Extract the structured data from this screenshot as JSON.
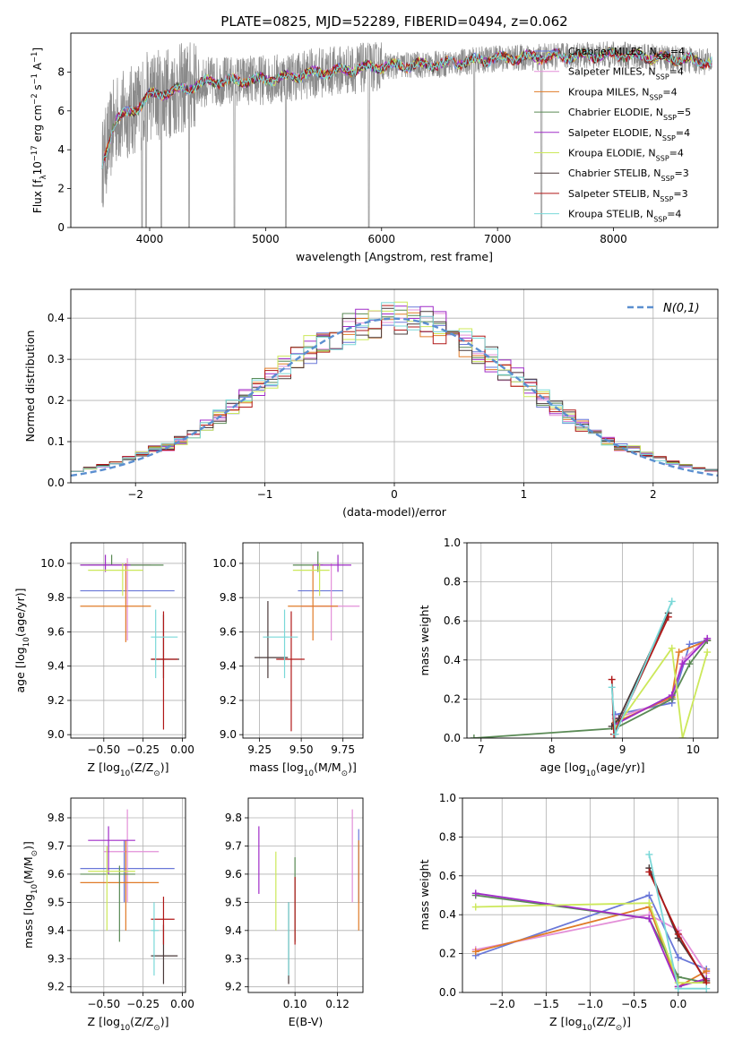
{
  "figure_title": "PLATE=0825, MJD=52289, FIBERID=0494, z=0.062",
  "models": [
    {
      "key": "cm",
      "base": "Chabrier MILES, N",
      "sub": "SSP",
      "suffix": "=4",
      "color": "#6a78d8"
    },
    {
      "key": "sm",
      "base": "Salpeter MILES, N",
      "sub": "SSP",
      "suffix": "=4",
      "color": "#e38fd8"
    },
    {
      "key": "km",
      "base": "Kroupa MILES, N",
      "sub": "SSP",
      "suffix": "=4",
      "color": "#e07b28"
    },
    {
      "key": "ce",
      "base": "Chabrier ELODIE, N",
      "sub": "SSP",
      "suffix": "=5",
      "color": "#5a8a55"
    },
    {
      "key": "se",
      "base": "Salpeter ELODIE, N",
      "sub": "SSP",
      "suffix": "=4",
      "color": "#a02dc8"
    },
    {
      "key": "ke",
      "base": "Kroupa ELODIE, N",
      "sub": "SSP",
      "suffix": "=4",
      "color": "#cce85a"
    },
    {
      "key": "cs",
      "base": "Chabrier STELIB, N",
      "sub": "SSP",
      "suffix": "=3",
      "color": "#4a3a3a"
    },
    {
      "key": "ss",
      "base": "Salpeter STELIB, N",
      "sub": "SSP",
      "suffix": "=3",
      "color": "#b01818"
    },
    {
      "key": "ks",
      "base": "Kroupa STELIB, N",
      "sub": "SSP",
      "suffix": "=4",
      "color": "#7ad8d8"
    }
  ],
  "chart_data": [
    {
      "id": "spectrum",
      "type": "line",
      "xlabel": "wavelength [Angstrom, rest frame]",
      "ylabel": {
        "base": "Flux [f",
        "sub": "λ",
        "mid": "10",
        "sup1": "−17",
        "rest": " erg cm",
        "sup2": "−2",
        "rest2": " s",
        "sup3": "−1",
        "rest3": " A",
        "sup4": "−1",
        "end": "]"
      },
      "xlim": [
        3320,
        8900
      ],
      "ylim": [
        0,
        10
      ],
      "xticks": [
        "4000",
        "5000",
        "6000",
        "7000",
        "8000"
      ],
      "xtick_values": [
        4000,
        5000,
        6000,
        7000,
        8000
      ],
      "yticks": [
        "0",
        "2",
        "4",
        "6",
        "8"
      ],
      "ytick_values": [
        0,
        2,
        4,
        6,
        8
      ],
      "wavelength_range": [
        3590,
        8850
      ],
      "continuum": [
        [
          3590,
          3.2
        ],
        [
          3700,
          5.5
        ],
        [
          3900,
          6.2
        ],
        [
          4000,
          6.8
        ],
        [
          4200,
          7.0
        ],
        [
          4500,
          7.5
        ],
        [
          5000,
          7.6
        ],
        [
          5500,
          8.0
        ],
        [
          6000,
          8.3
        ],
        [
          6500,
          8.4
        ],
        [
          7000,
          8.7
        ],
        [
          7500,
          8.8
        ],
        [
          8000,
          8.9
        ],
        [
          8500,
          8.7
        ],
        [
          8850,
          8.5
        ]
      ],
      "absorption_lines": [
        3934,
        3969,
        4102,
        4340,
        4730,
        5175,
        5890,
        6800,
        7380
      ],
      "grid": false,
      "legend": "top-right"
    },
    {
      "id": "residuals",
      "type": "histogram",
      "xlabel": "(data-model)/error",
      "ylabel": "Normed distribution",
      "xlim": [
        -2.5,
        2.5
      ],
      "ylim": [
        0,
        0.47
      ],
      "xticks": [
        "−2",
        "−1",
        "0",
        "1",
        "2"
      ],
      "xtick_values": [
        -2,
        -1,
        0,
        1,
        2
      ],
      "yticks": [
        "0.0",
        "0.1",
        "0.2",
        "0.3",
        "0.4"
      ],
      "ytick_values": [
        0,
        0.1,
        0.2,
        0.3,
        0.4
      ],
      "bin_width": 0.1,
      "reference_curve": {
        "label": "N(0,1)",
        "mu": 0,
        "sigma": 1,
        "color": "#5b8fd0",
        "style": "dashed"
      },
      "grid": true,
      "legend": "top-right"
    },
    {
      "id": "age_vs_Z",
      "type": "errorbar",
      "xlabel": {
        "base": "Z [log",
        "sub": "10",
        "rest": "(Z/Z",
        "sub2": "⊙",
        "end": ")]"
      },
      "ylabel": {
        "base": "age  [log",
        "sub": "10",
        "rest": "(age/yr)]"
      },
      "xlim": [
        -0.71,
        0.02
      ],
      "ylim": [
        8.98,
        10.12
      ],
      "xticks": [
        "−0.50",
        "−0.25",
        "0.00"
      ],
      "xtick_values": [
        -0.5,
        -0.25,
        0
      ],
      "yticks": [
        "9.0",
        "9.2",
        "9.4",
        "9.6",
        "9.8",
        "10.0"
      ],
      "ytick_values": [
        9.0,
        9.2,
        9.4,
        9.6,
        9.8,
        10.0
      ],
      "points": [
        {
          "m": "cm",
          "x": -0.37,
          "xlo": -0.65,
          "xhi": -0.05,
          "y": 9.84,
          "ylo": 9.84,
          "yhi": 9.84
        },
        {
          "m": "sm",
          "x": -0.35,
          "xlo": -0.6,
          "xhi": -0.2,
          "y": 9.99,
          "ylo": 9.55,
          "yhi": 10.03
        },
        {
          "m": "km",
          "x": -0.36,
          "xlo": -0.65,
          "xhi": -0.2,
          "y": 9.75,
          "ylo": 9.54,
          "yhi": 10.0
        },
        {
          "m": "ce",
          "x": -0.45,
          "xlo": -0.65,
          "xhi": -0.12,
          "y": 9.99,
          "ylo": 9.99,
          "yhi": 10.05
        },
        {
          "m": "se",
          "x": -0.49,
          "xlo": -0.65,
          "xhi": -0.33,
          "y": 9.99,
          "ylo": 9.95,
          "yhi": 10.05
        },
        {
          "m": "ke",
          "x": -0.38,
          "xlo": -0.6,
          "xhi": -0.25,
          "y": 9.96,
          "ylo": 9.81,
          "yhi": 10.0
        },
        {
          "m": "cs",
          "x": -0.12,
          "xlo": -0.2,
          "xhi": -0.02,
          "y": 9.44,
          "ylo": 9.33,
          "yhi": 9.7
        },
        {
          "m": "ss",
          "x": -0.12,
          "xlo": -0.2,
          "xhi": -0.03,
          "y": 9.44,
          "ylo": 9.03,
          "yhi": 9.72
        },
        {
          "m": "ks",
          "x": -0.17,
          "xlo": -0.2,
          "xhi": -0.03,
          "y": 9.57,
          "ylo": 9.33,
          "yhi": 9.73
        }
      ],
      "grid": true
    },
    {
      "id": "age_vs_mass",
      "type": "errorbar",
      "xlabel": {
        "base": "mass [log",
        "sub": "10",
        "rest": "(M/M",
        "sub2": "⊙",
        "end": ")]"
      },
      "xlim": [
        9.15,
        9.87
      ],
      "ylim": [
        8.98,
        10.12
      ],
      "xticks": [
        "9.25",
        "9.50",
        "9.75"
      ],
      "xtick_values": [
        9.25,
        9.5,
        9.75
      ],
      "yticks": [
        "9.0",
        "9.2",
        "9.4",
        "9.6",
        "9.8",
        "10.0"
      ],
      "ytick_values": [
        9.0,
        9.2,
        9.4,
        9.6,
        9.8,
        10.0
      ],
      "points": [
        {
          "m": "cm",
          "x": 9.62,
          "xlo": 9.48,
          "xhi": 9.75,
          "y": 9.84,
          "ylo": 9.84,
          "yhi": 9.84
        },
        {
          "m": "sm",
          "x": 9.68,
          "xlo": 9.5,
          "xhi": 9.85,
          "y": 9.75,
          "ylo": 9.55,
          "yhi": 10.0
        },
        {
          "m": "km",
          "x": 9.57,
          "xlo": 9.42,
          "xhi": 9.72,
          "y": 9.75,
          "ylo": 9.55,
          "yhi": 9.99
        },
        {
          "m": "ce",
          "x": 9.6,
          "xlo": 9.45,
          "xhi": 9.63,
          "y": 9.99,
          "ylo": 9.95,
          "yhi": 10.07
        },
        {
          "m": "se",
          "x": 9.72,
          "xlo": 9.57,
          "xhi": 9.8,
          "y": 9.99,
          "ylo": 9.95,
          "yhi": 10.05
        },
        {
          "m": "ke",
          "x": 9.61,
          "xlo": 9.45,
          "xhi": 9.67,
          "y": 9.96,
          "ylo": 9.81,
          "yhi": 10.0
        },
        {
          "m": "cs",
          "x": 9.3,
          "xlo": 9.22,
          "xhi": 9.42,
          "y": 9.45,
          "ylo": 9.33,
          "yhi": 9.78
        },
        {
          "m": "ss",
          "x": 9.44,
          "xlo": 9.35,
          "xhi": 9.52,
          "y": 9.44,
          "ylo": 9.02,
          "yhi": 9.72
        },
        {
          "m": "ks",
          "x": 9.4,
          "xlo": 9.27,
          "xhi": 9.48,
          "y": 9.57,
          "ylo": 9.33,
          "yhi": 9.73
        }
      ],
      "grid": true
    },
    {
      "id": "weight_vs_age",
      "type": "line",
      "xlabel": {
        "base": "age  [log",
        "sub": "10",
        "rest": "(age/yr)]"
      },
      "ylabel": "mass weight",
      "xlim": [
        6.8,
        10.35
      ],
      "ylim": [
        0,
        1
      ],
      "xticks": [
        "7",
        "8",
        "9",
        "10"
      ],
      "xtick_values": [
        7,
        8,
        9,
        10
      ],
      "yticks": [
        "0.0",
        "0.2",
        "0.4",
        "0.6",
        "0.8",
        "1.0"
      ],
      "ytick_values": [
        0,
        0.2,
        0.4,
        0.6,
        0.8,
        1.0
      ],
      "series": [
        {
          "m": "cm",
          "x": [
            8.9,
            9.7,
            9.95,
            10.2
          ],
          "y": [
            0.12,
            0.18,
            0.48,
            0.5
          ]
        },
        {
          "m": "sm",
          "x": [
            8.9,
            9.7,
            9.85,
            10.2
          ],
          "y": [
            0.1,
            0.2,
            0.4,
            0.51
          ]
        },
        {
          "m": "km",
          "x": [
            8.9,
            9.7,
            9.8,
            10.2
          ],
          "y": [
            0.08,
            0.21,
            0.44,
            0.5
          ]
        },
        {
          "m": "ce",
          "x": [
            6.9,
            8.9,
            9.7,
            9.95,
            10.2
          ],
          "y": [
            0.0,
            0.05,
            0.2,
            0.38,
            0.5
          ]
        },
        {
          "m": "se",
          "x": [
            8.9,
            9.7,
            9.85,
            10.2
          ],
          "y": [
            0.07,
            0.22,
            0.38,
            0.51
          ]
        },
        {
          "m": "ke",
          "x": [
            8.9,
            9.7,
            9.85,
            10.2
          ],
          "y": [
            0.05,
            0.46,
            0.0,
            0.44
          ]
        },
        {
          "m": "cs",
          "x": [
            8.85,
            8.95,
            9.65
          ],
          "y": [
            0.06,
            0.1,
            0.64
          ]
        },
        {
          "m": "ss",
          "x": [
            8.85,
            8.88,
            9.65
          ],
          "y": [
            0.3,
            0.02,
            0.62
          ]
        },
        {
          "m": "ks",
          "x": [
            8.85,
            8.9,
            9.7
          ],
          "y": [
            0.26,
            0.02,
            0.7
          ]
        }
      ],
      "grid": true
    },
    {
      "id": "mass_vs_Z",
      "type": "errorbar",
      "xlabel": {
        "base": "Z [log",
        "sub": "10",
        "rest": "(Z/Z",
        "sub2": "⊙",
        "end": ")]"
      },
      "ylabel": {
        "base": "mass [log",
        "sub": "10",
        "rest": "(M/M",
        "sub2": "⊙",
        "end": ")]"
      },
      "xlim": [
        -0.71,
        0.02
      ],
      "ylim": [
        9.18,
        9.87
      ],
      "xticks": [
        "−0.50",
        "−0.25",
        "0.00"
      ],
      "xtick_values": [
        -0.5,
        -0.25,
        0
      ],
      "yticks": [
        "9.2",
        "9.3",
        "9.4",
        "9.5",
        "9.6",
        "9.7",
        "9.8"
      ],
      "ytick_values": [
        9.2,
        9.3,
        9.4,
        9.5,
        9.6,
        9.7,
        9.8
      ],
      "points": [
        {
          "m": "cm",
          "x": -0.37,
          "xlo": -0.65,
          "xhi": -0.05,
          "y": 9.62,
          "ylo": 9.5,
          "yhi": 9.72
        },
        {
          "m": "sm",
          "x": -0.35,
          "xlo": -0.5,
          "xhi": -0.15,
          "y": 9.68,
          "ylo": 9.5,
          "yhi": 9.83
        },
        {
          "m": "km",
          "x": -0.36,
          "xlo": -0.65,
          "xhi": -0.15,
          "y": 9.57,
          "ylo": 9.4,
          "yhi": 9.72
        },
        {
          "m": "ce",
          "x": -0.4,
          "xlo": -0.65,
          "xhi": -0.3,
          "y": 9.6,
          "ylo": 9.36,
          "yhi": 9.63
        },
        {
          "m": "se",
          "x": -0.47,
          "xlo": -0.6,
          "xhi": -0.3,
          "y": 9.72,
          "ylo": 9.6,
          "yhi": 9.77
        },
        {
          "m": "ke",
          "x": -0.48,
          "xlo": -0.6,
          "xhi": -0.3,
          "y": 9.61,
          "ylo": 9.4,
          "yhi": 9.7
        },
        {
          "m": "cs",
          "x": -0.12,
          "xlo": -0.2,
          "xhi": -0.03,
          "y": 9.31,
          "ylo": 9.21,
          "yhi": 9.42
        },
        {
          "m": "ss",
          "x": -0.12,
          "xlo": -0.2,
          "xhi": -0.05,
          "y": 9.44,
          "ylo": 9.35,
          "yhi": 9.52
        },
        {
          "m": "ks",
          "x": -0.18,
          "xlo": -0.2,
          "xhi": -0.15,
          "y": 9.4,
          "ylo": 9.24,
          "yhi": 9.5
        }
      ],
      "grid": true
    },
    {
      "id": "mass_vs_ebv",
      "type": "errorbar",
      "xlabel": "E(B-V)",
      "xlim": [
        0.078,
        0.132
      ],
      "ylim": [
        9.18,
        9.87
      ],
      "xticks": [
        "0.10",
        "0.12"
      ],
      "xtick_values": [
        0.1,
        0.12
      ],
      "yticks": [
        "9.2",
        "9.3",
        "9.4",
        "9.5",
        "9.6",
        "9.7",
        "9.8"
      ],
      "ytick_values": [
        9.2,
        9.3,
        9.4,
        9.5,
        9.6,
        9.7,
        9.8
      ],
      "points": [
        {
          "m": "cm",
          "x": 0.13,
          "ylo": 9.5,
          "yhi": 9.76
        },
        {
          "m": "sm",
          "x": 0.127,
          "ylo": 9.5,
          "yhi": 9.83
        },
        {
          "m": "km",
          "x": 0.13,
          "ylo": 9.4,
          "yhi": 9.72
        },
        {
          "m": "ce",
          "x": 0.1,
          "ylo": 9.36,
          "yhi": 9.66
        },
        {
          "m": "se",
          "x": 0.083,
          "ylo": 9.53,
          "yhi": 9.77
        },
        {
          "m": "ke",
          "x": 0.091,
          "ylo": 9.4,
          "yhi": 9.68
        },
        {
          "m": "cs",
          "x": 0.097,
          "ylo": 9.21,
          "yhi": 9.5
        },
        {
          "m": "ss",
          "x": 0.1,
          "ylo": 9.35,
          "yhi": 9.59
        },
        {
          "m": "ks",
          "x": 0.097,
          "ylo": 9.24,
          "yhi": 9.5
        }
      ],
      "grid": true
    },
    {
      "id": "weight_vs_Z",
      "type": "line",
      "xlabel": {
        "base": "Z [log",
        "sub": "10",
        "rest": "(Z/Z",
        "sub2": "⊙",
        "end": ")]"
      },
      "ylabel": "mass weight",
      "xlim": [
        -2.45,
        0.45
      ],
      "ylim": [
        0,
        1
      ],
      "xticks": [
        "−2.0",
        "−1.5",
        "−1.0",
        "−0.5",
        "0.0"
      ],
      "xtick_values": [
        -2.0,
        -1.5,
        -1.0,
        -0.5,
        0.0
      ],
      "yticks": [
        "0.0",
        "0.2",
        "0.4",
        "0.6",
        "0.8",
        "1.0"
      ],
      "ytick_values": [
        0,
        0.2,
        0.4,
        0.6,
        0.8,
        1.0
      ],
      "series": [
        {
          "m": "cm",
          "x": [
            -2.3,
            -0.33,
            0.0,
            0.32
          ],
          "y": [
            0.19,
            0.5,
            0.18,
            0.12
          ]
        },
        {
          "m": "sm",
          "x": [
            -2.3,
            -0.33,
            0.0,
            0.32
          ],
          "y": [
            0.22,
            0.4,
            0.32,
            0.1
          ]
        },
        {
          "m": "km",
          "x": [
            -2.3,
            -0.33,
            0.0,
            0.32
          ],
          "y": [
            0.21,
            0.44,
            0.03,
            0.11
          ]
        },
        {
          "m": "ce",
          "x": [
            -2.3,
            -0.33,
            0.0,
            0.32
          ],
          "y": [
            0.5,
            0.38,
            0.08,
            0.05
          ]
        },
        {
          "m": "se",
          "x": [
            -2.3,
            -0.33,
            0.0,
            0.32
          ],
          "y": [
            0.51,
            0.38,
            0.03,
            0.07
          ]
        },
        {
          "m": "ke",
          "x": [
            -2.3,
            -0.33,
            0.0,
            0.32
          ],
          "y": [
            0.44,
            0.46,
            0.05,
            0.05
          ]
        },
        {
          "m": "cs",
          "x": [
            -0.33,
            0.0,
            0.32
          ],
          "y": [
            0.64,
            0.28,
            0.06
          ]
        },
        {
          "m": "ss",
          "x": [
            -0.33,
            0.0,
            0.32
          ],
          "y": [
            0.62,
            0.3,
            0.05
          ]
        },
        {
          "m": "ks",
          "x": [
            -0.33,
            0.0,
            0.32
          ],
          "y": [
            0.71,
            0.02,
            0.02
          ]
        }
      ],
      "grid": true
    }
  ]
}
